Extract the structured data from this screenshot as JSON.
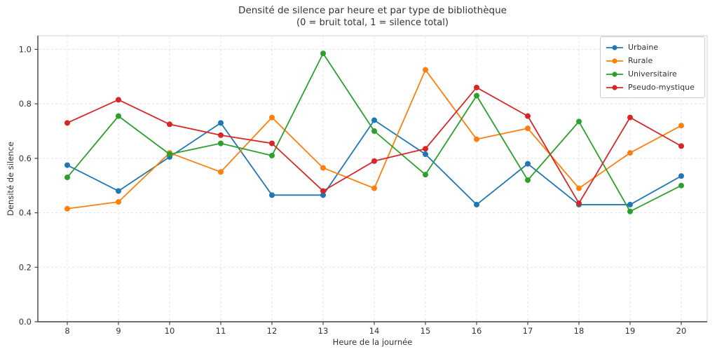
{
  "chart_data": {
    "type": "line",
    "title": "Densité de silence par heure et par type de bibliothèque",
    "subtitle": "(0 = bruit total, 1 = silence total)",
    "xlabel": "Heure de la journée",
    "ylabel": "Densité de silence",
    "x": [
      8,
      9,
      10,
      11,
      12,
      13,
      14,
      15,
      16,
      17,
      18,
      19,
      20
    ],
    "x_tick_labels": [
      "8",
      "9",
      "10",
      "11",
      "12",
      "13",
      "14",
      "15",
      "16",
      "17",
      "18",
      "19",
      "20"
    ],
    "y_ticks": [
      0.0,
      0.2,
      0.4,
      0.6,
      0.8,
      1.0
    ],
    "y_tick_labels": [
      "0.0",
      "0.2",
      "0.4",
      "0.6",
      "0.8",
      "1.0"
    ],
    "ylim": [
      0,
      1.05
    ],
    "grid": true,
    "grid_style": "dashed",
    "legend_position": "upper right",
    "series": [
      {
        "name": "Urbaine",
        "color": "#1f77b4",
        "values": [
          0.575,
          0.48,
          0.605,
          0.73,
          0.465,
          0.465,
          0.74,
          0.615,
          0.43,
          0.58,
          0.43,
          0.43,
          0.535
        ]
      },
      {
        "name": "Rurale",
        "color": "#ff7f0e",
        "values": [
          0.415,
          0.44,
          0.62,
          0.55,
          0.75,
          0.565,
          0.49,
          0.925,
          0.67,
          0.71,
          0.49,
          0.62,
          0.72
        ]
      },
      {
        "name": "Universitaire",
        "color": "#2ca02c",
        "values": [
          0.53,
          0.755,
          0.615,
          0.655,
          0.61,
          0.985,
          0.7,
          0.54,
          0.83,
          0.52,
          0.735,
          0.405,
          0.5
        ]
      },
      {
        "name": "Pseudo-mystique",
        "color": "#d62728",
        "values": [
          0.73,
          0.815,
          0.725,
          0.685,
          0.655,
          0.48,
          0.59,
          0.635,
          0.86,
          0.755,
          0.435,
          0.75,
          0.645
        ]
      }
    ],
    "colors": {
      "spine_dark": "#424242",
      "spine_light": "#d9d9d9",
      "grid": "#e4e4e4",
      "tick_label": "#333333"
    }
  }
}
